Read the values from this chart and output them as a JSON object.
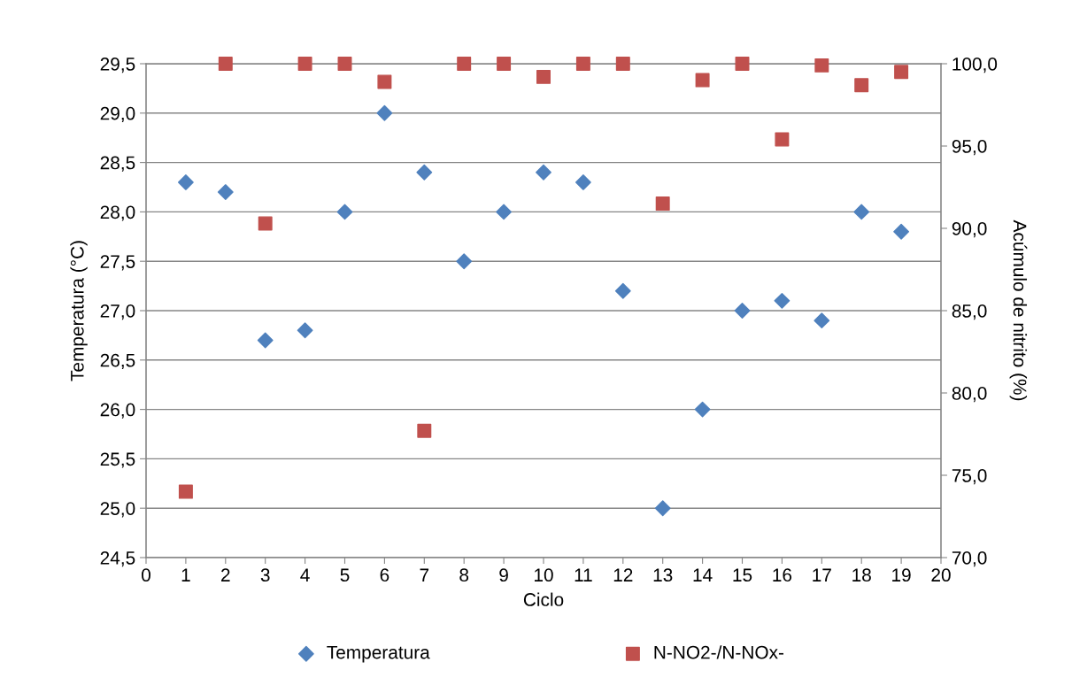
{
  "chart_data": {
    "type": "scatter",
    "xlabel": "Ciclo",
    "ylabel": "Temperatura (°C)",
    "y2label": "Acúmulo de nitrito (%)",
    "x": [
      1,
      2,
      3,
      4,
      5,
      6,
      7,
      8,
      9,
      10,
      11,
      12,
      13,
      14,
      15,
      16,
      17,
      18,
      19
    ],
    "series": [
      {
        "name": "Temperatura",
        "color": "#4f81bd",
        "marker": "diamond",
        "values": [
          28.3,
          28.2,
          26.7,
          26.8,
          28.0,
          29.0,
          28.4,
          27.5,
          28.0,
          28.4,
          28.3,
          27.2,
          25.0,
          26.0,
          27.0,
          27.1,
          26.9,
          28.0,
          27.8
        ]
      },
      {
        "name": "N-NO2-/N-NOx-",
        "color": "#c0504d",
        "marker": "square",
        "axis": "y2",
        "values": [
          74.0,
          100.0,
          90.3,
          100.0,
          100.0,
          98.9,
          77.7,
          100.0,
          100.0,
          99.2,
          100.0,
          100.0,
          91.5,
          99.0,
          100.0,
          95.4,
          99.9,
          98.7,
          99.5
        ]
      }
    ],
    "xlim": [
      0,
      20
    ],
    "xticks": [
      0,
      1,
      2,
      3,
      4,
      5,
      6,
      7,
      8,
      9,
      10,
      11,
      12,
      13,
      14,
      15,
      16,
      17,
      18,
      19,
      20
    ],
    "ylim": [
      24.5,
      29.5
    ],
    "yticks": [
      {
        "value": 24.5,
        "label": "24,5"
      },
      {
        "value": 25,
        "label": "25,0"
      },
      {
        "value": 25.5,
        "label": "25,5"
      },
      {
        "value": 26,
        "label": "26,0"
      },
      {
        "value": 26.5,
        "label": "26,5"
      },
      {
        "value": 27,
        "label": "27,0"
      },
      {
        "value": 27.5,
        "label": "27,5"
      },
      {
        "value": 28,
        "label": "28,0"
      },
      {
        "value": 28.5,
        "label": "28,5"
      },
      {
        "value": 29,
        "label": "29,0"
      },
      {
        "value": 29.5,
        "label": "29,5"
      }
    ],
    "y2lim": [
      70,
      100
    ],
    "y2ticks": [
      {
        "value": 70,
        "label": "70,0"
      },
      {
        "value": 75,
        "label": "75,0"
      },
      {
        "value": 80,
        "label": "80,0"
      },
      {
        "value": 85,
        "label": "85,0"
      },
      {
        "value": 90,
        "label": "90,0"
      },
      {
        "value": 95,
        "label": "95,0"
      },
      {
        "value": 100,
        "label": "100,0"
      }
    ],
    "grid": "y",
    "legend": "bottom"
  }
}
